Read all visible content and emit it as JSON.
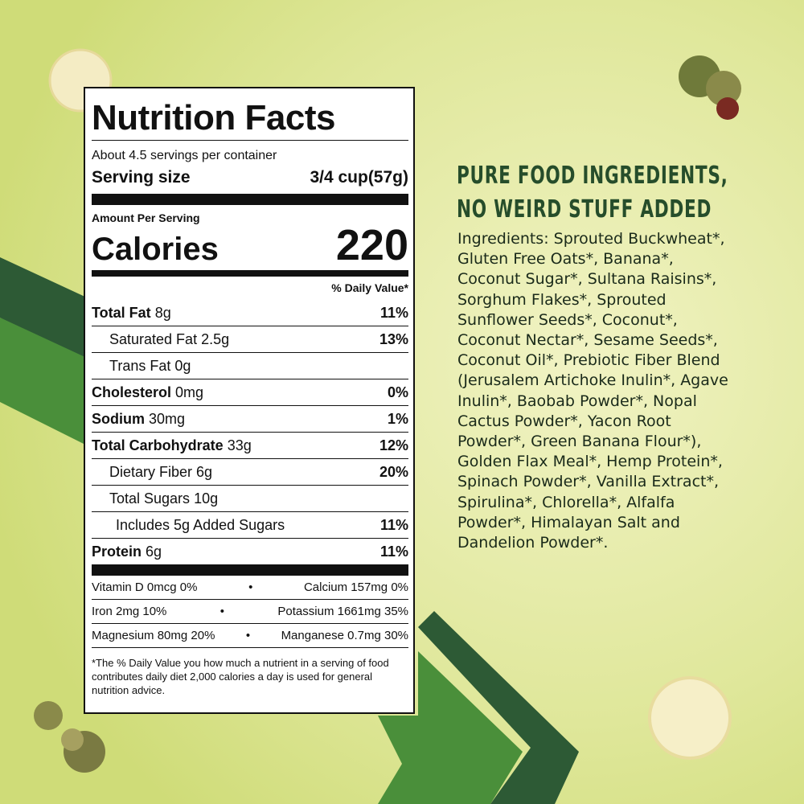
{
  "nutrition": {
    "title": "Nutrition Facts",
    "servings": "About 4.5 servings per container",
    "serving_size_label": "Serving size",
    "serving_size_value": "3/4 cup(57g)",
    "amount_per_serving": "Amount Per Serving",
    "calories_label": "Calories",
    "calories_value": 220,
    "daily_value_header": "% Daily Value*",
    "rows": [
      {
        "name": "Total Fat",
        "amount": "8g",
        "dv": "11%"
      },
      {
        "name": "Saturated Fat",
        "amount": "2.5g",
        "dv": "13%"
      },
      {
        "name": "Trans Fat",
        "amount": "0g"
      },
      {
        "name": "Cholesterol",
        "amount": "0mg",
        "dv": "0%"
      },
      {
        "name": "Sodium",
        "amount": "30mg",
        "dv": "1%"
      },
      {
        "name": "Total Carbohydrate",
        "amount": "33g",
        "dv": "12%"
      },
      {
        "name": "Dietary Fiber",
        "amount": "6g",
        "dv": "20%"
      },
      {
        "name": "Total Sugars",
        "amount": "10g"
      },
      {
        "name": "Includes 5g Added Sugars",
        "dv": "11%"
      },
      {
        "name": "Protein",
        "amount": "6g",
        "dv": "11%"
      }
    ],
    "vitamins": [
      [
        "Vitamin D 0mcg 0%",
        "Calcium 157mg 0%"
      ],
      [
        "Iron 2mg 10%",
        "Potassium 1661mg 35%"
      ],
      [
        "Magnesium 80mg 20%",
        "Manganese 0.7mg 30%"
      ]
    ],
    "footnote": "*The % Daily Value you how much a nutrient in a serving of food contributes daily diet 2,000 calories a day is used for general nutrition advice."
  },
  "headline": [
    "PURE FOOD INGREDIENTS,",
    "NO WEIRD STUFF ADDED"
  ],
  "ingredients": "Ingredients: Sprouted Buckwheat*, Gluten Free Oats*, Banana*, Coconut Sugar*, Sultana Raisins*, Sorghum Flakes*, Sprouted Sunflower Seeds*, Coconut*, Coconut Nectar*, Sesame Seeds*, Coconut Oil*, Prebiotic Fiber Blend (Jerusalem Artichoke Inulin*, Agave Inulin*, Baobab Powder*, Nopal Cactus Powder*, Yacon Root Powder*, Green Banana Flour*), Golden Flax Meal*, Hemp Protein*, Spinach Powder*, Vanilla Extract*, Spirulina*, Chlorella*, Alfalfa Powder*, Himalayan Salt and Dandelion Powder*."
}
